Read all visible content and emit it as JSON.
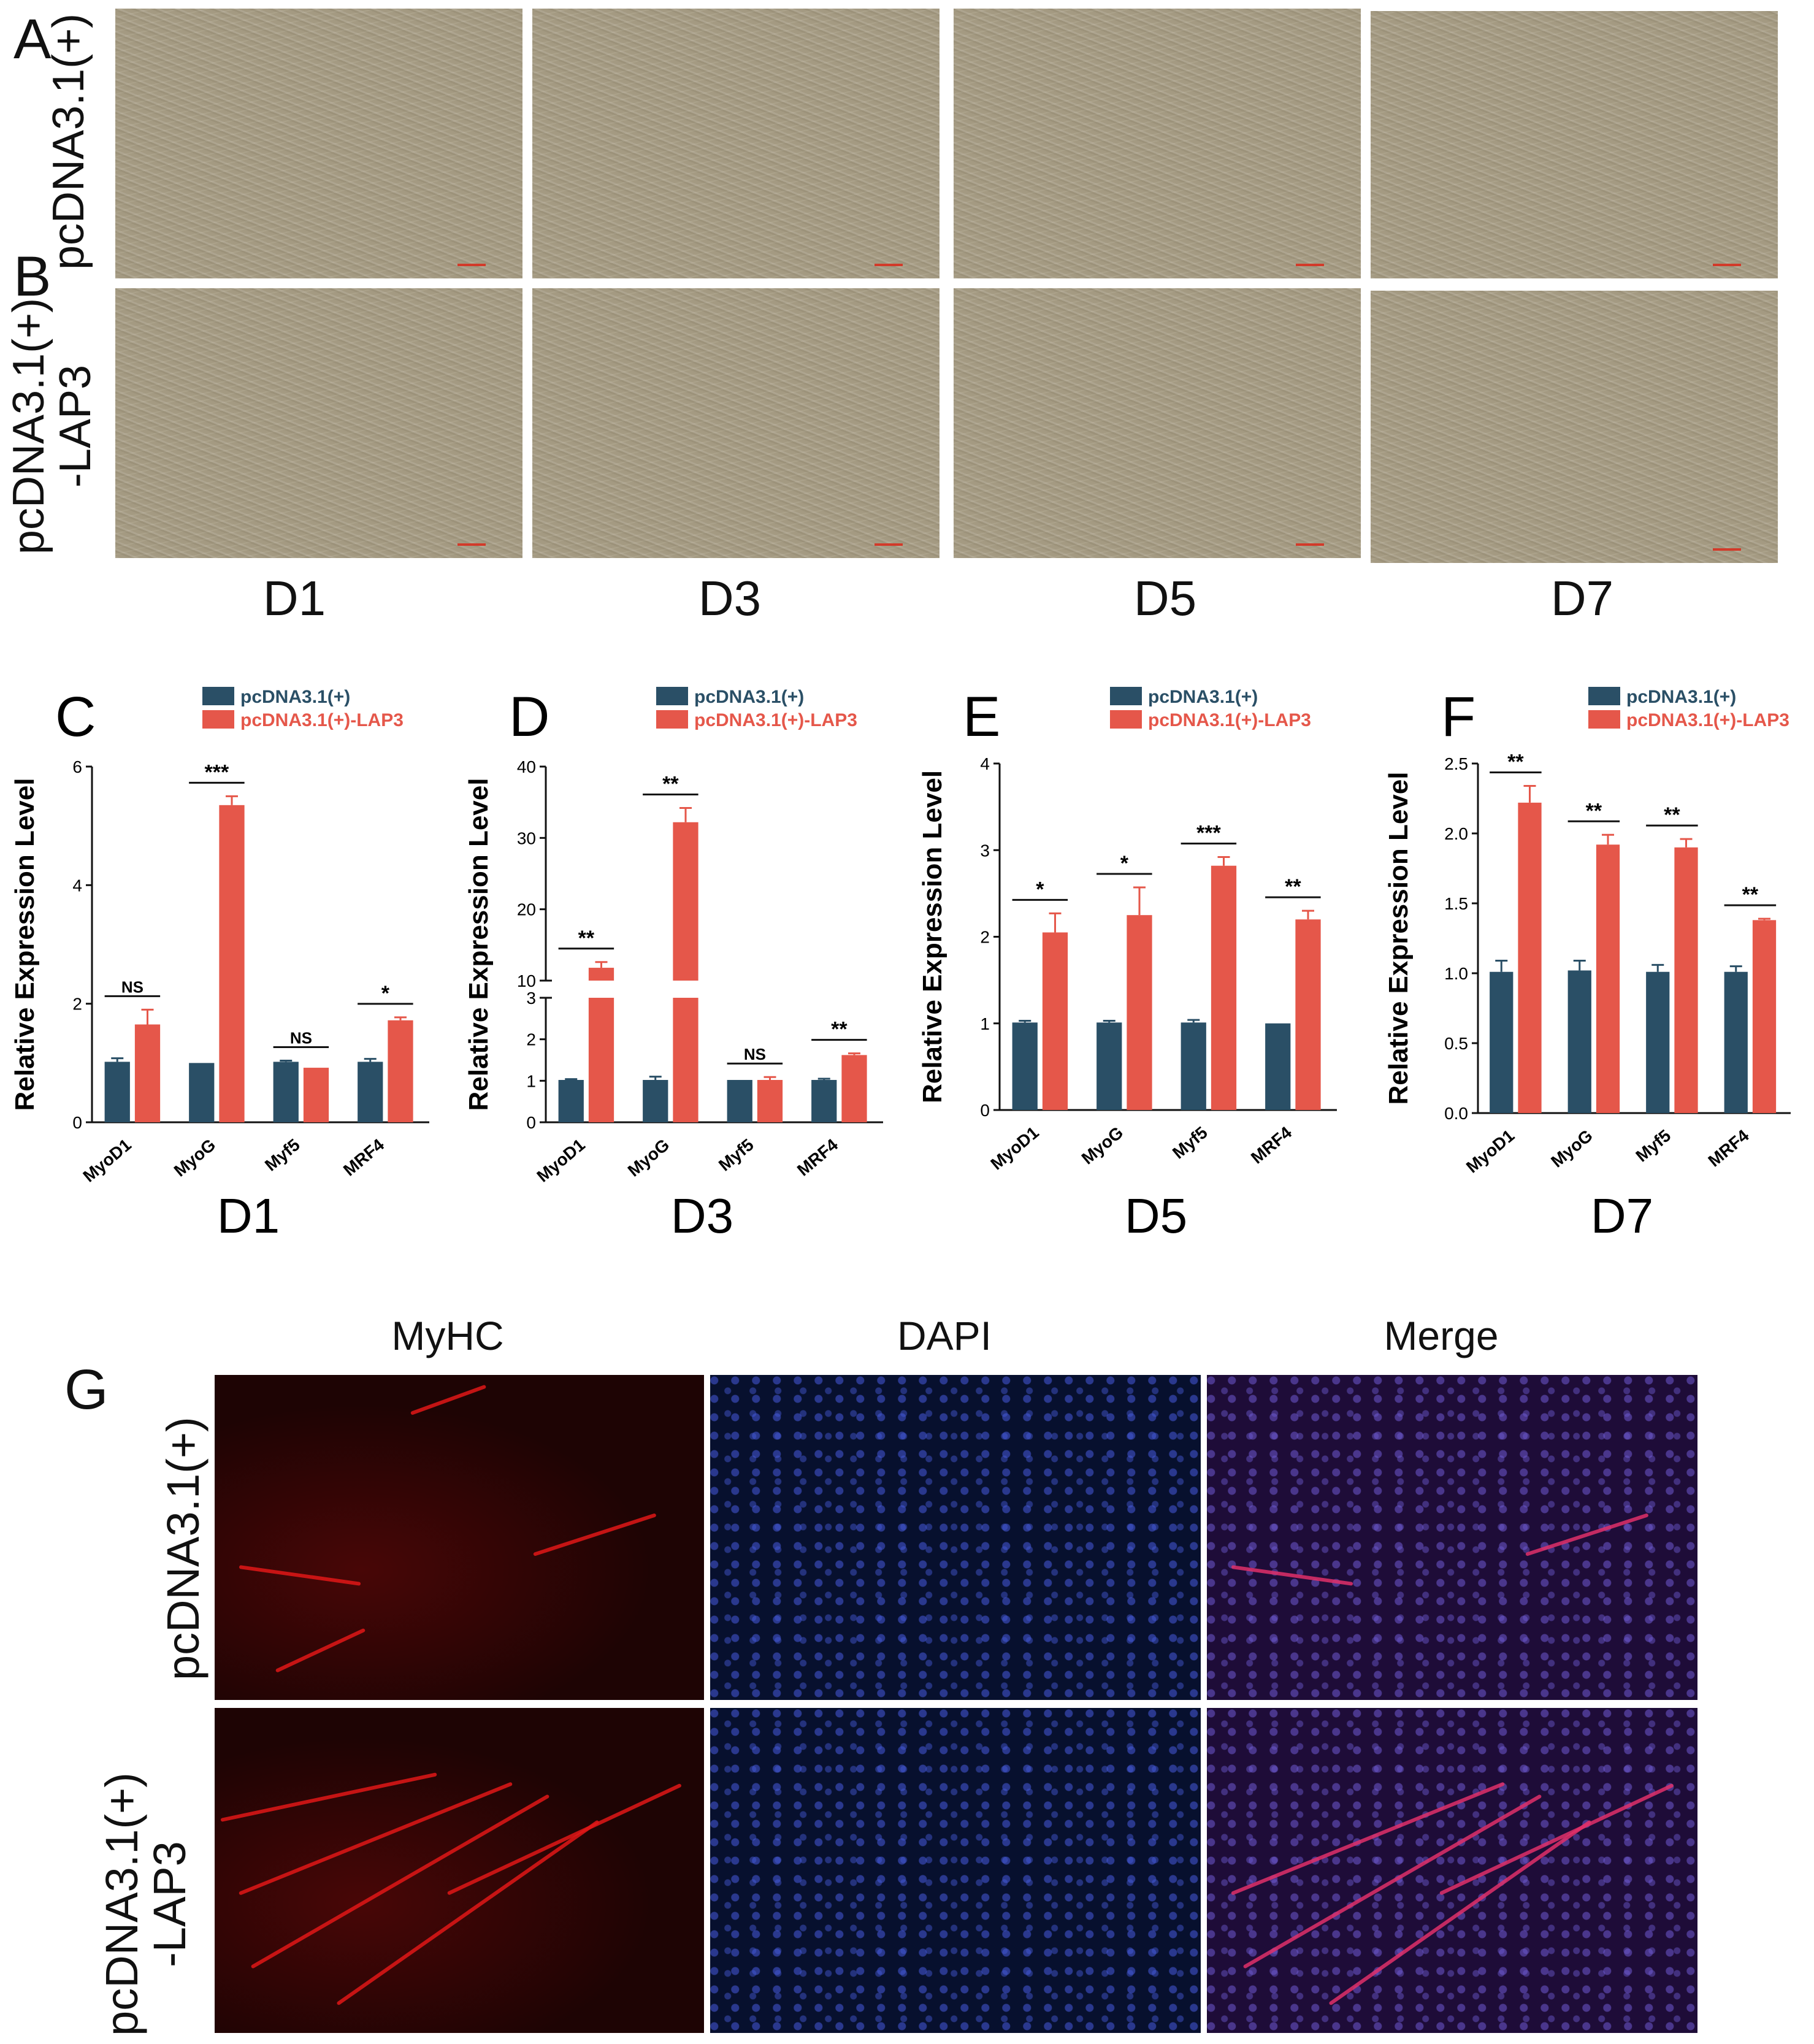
{
  "colors": {
    "control": "#2a4f66",
    "treatment": "#e5574a",
    "control_text": "#2a4f66",
    "treatment_text": "#e5574a"
  },
  "panels": {
    "A": "A",
    "B": "B",
    "C": "C",
    "D": "D",
    "E": "E",
    "F": "F",
    "G": "G"
  },
  "brightfield": {
    "row_labels": [
      "pcDNA3.1(+)",
      "pcDNA3.1(+)\n-LAP3"
    ],
    "row_label_a": "pcDNA3.1(+)",
    "row_label_b_line1": "pcDNA3.1(+)",
    "row_label_b_line2": "-LAP3",
    "days": [
      "D1",
      "D3",
      "D5",
      "D7"
    ]
  },
  "fluorescence": {
    "channels": [
      "MyHC",
      "DAPI",
      "Merge"
    ],
    "row_label_1": "pcDNA3.1(+)",
    "row_label_2_line1": "pcDNA3.1(+)",
    "row_label_2_line2": "-LAP3"
  },
  "chart_data": [
    {
      "type": "bar",
      "panel": "C",
      "title": "D1",
      "ylabel": "Relative Expression Level",
      "categories": [
        "MyoD1",
        "MyoG",
        "Myf5",
        "MRF4"
      ],
      "ylim": [
        0,
        6
      ],
      "yticks": [
        0,
        2,
        4,
        6
      ],
      "series": [
        {
          "name": "pcDNA3.1(+)",
          "values": [
            1.02,
            1.0,
            1.02,
            1.02
          ],
          "errors": [
            0.06,
            0,
            0.02,
            0.05
          ]
        },
        {
          "name": "pcDNA3.1(+)-LAP3",
          "values": [
            1.65,
            5.35,
            0.92,
            1.72
          ],
          "errors": [
            0.25,
            0.15,
            0,
            0.05
          ]
        }
      ],
      "significance": [
        "NS",
        "***",
        "NS",
        "*"
      ]
    },
    {
      "type": "bar",
      "panel": "D",
      "title": "D3",
      "ylabel": "Relative Expression Level",
      "categories": [
        "MyoD1",
        "MyoG",
        "Myf5",
        "MRF4"
      ],
      "ylim": [
        0,
        40
      ],
      "axis_break": [
        3,
        10
      ],
      "yticks": [
        0,
        1,
        2,
        3,
        10,
        20,
        30,
        40
      ],
      "series": [
        {
          "name": "pcDNA3.1(+)",
          "values": [
            1.02,
            1.02,
            1.02,
            1.02
          ],
          "errors": [
            0.02,
            0.08,
            0,
            0.03
          ]
        },
        {
          "name": "pcDNA3.1(+)-LAP3",
          "values": [
            11.8,
            32.2,
            1.02,
            1.62
          ],
          "errors": [
            0.8,
            2.0,
            0.07,
            0.04
          ]
        }
      ],
      "significance": [
        "**",
        "**",
        "NS",
        "**"
      ]
    },
    {
      "type": "bar",
      "panel": "E",
      "title": "D5",
      "ylabel": "Relative Expression Level",
      "categories": [
        "MyoD1",
        "MyoG",
        "Myf5",
        "MRF4"
      ],
      "ylim": [
        0,
        4
      ],
      "yticks": [
        0,
        1,
        2,
        3,
        4
      ],
      "series": [
        {
          "name": "pcDNA3.1(+)",
          "values": [
            1.01,
            1.01,
            1.01,
            1.0
          ],
          "errors": [
            0.02,
            0.02,
            0.03,
            0
          ]
        },
        {
          "name": "pcDNA3.1(+)-LAP3",
          "values": [
            2.05,
            2.25,
            2.82,
            2.2
          ],
          "errors": [
            0.22,
            0.32,
            0.1,
            0.1
          ]
        }
      ],
      "significance": [
        "*",
        "*",
        "***",
        "**"
      ]
    },
    {
      "type": "bar",
      "panel": "F",
      "title": "D7",
      "ylabel": "Relative Expression Level",
      "categories": [
        "MyoD1",
        "MyoG",
        "Myf5",
        "MRF4"
      ],
      "ylim": [
        0,
        2.5
      ],
      "yticks": [
        "0.0",
        "0.5",
        "1.0",
        "1.5",
        "2.0",
        "2.5"
      ],
      "series": [
        {
          "name": "pcDNA3.1(+)",
          "values": [
            1.01,
            1.02,
            1.01,
            1.01
          ],
          "errors": [
            0.08,
            0.07,
            0.05,
            0.04
          ]
        },
        {
          "name": "pcDNA3.1(+)-LAP3",
          "values": [
            2.22,
            1.92,
            1.9,
            1.38
          ],
          "errors": [
            0.12,
            0.07,
            0.06,
            0.01
          ]
        }
      ],
      "significance": [
        "**",
        "**",
        "**",
        "**"
      ]
    }
  ]
}
